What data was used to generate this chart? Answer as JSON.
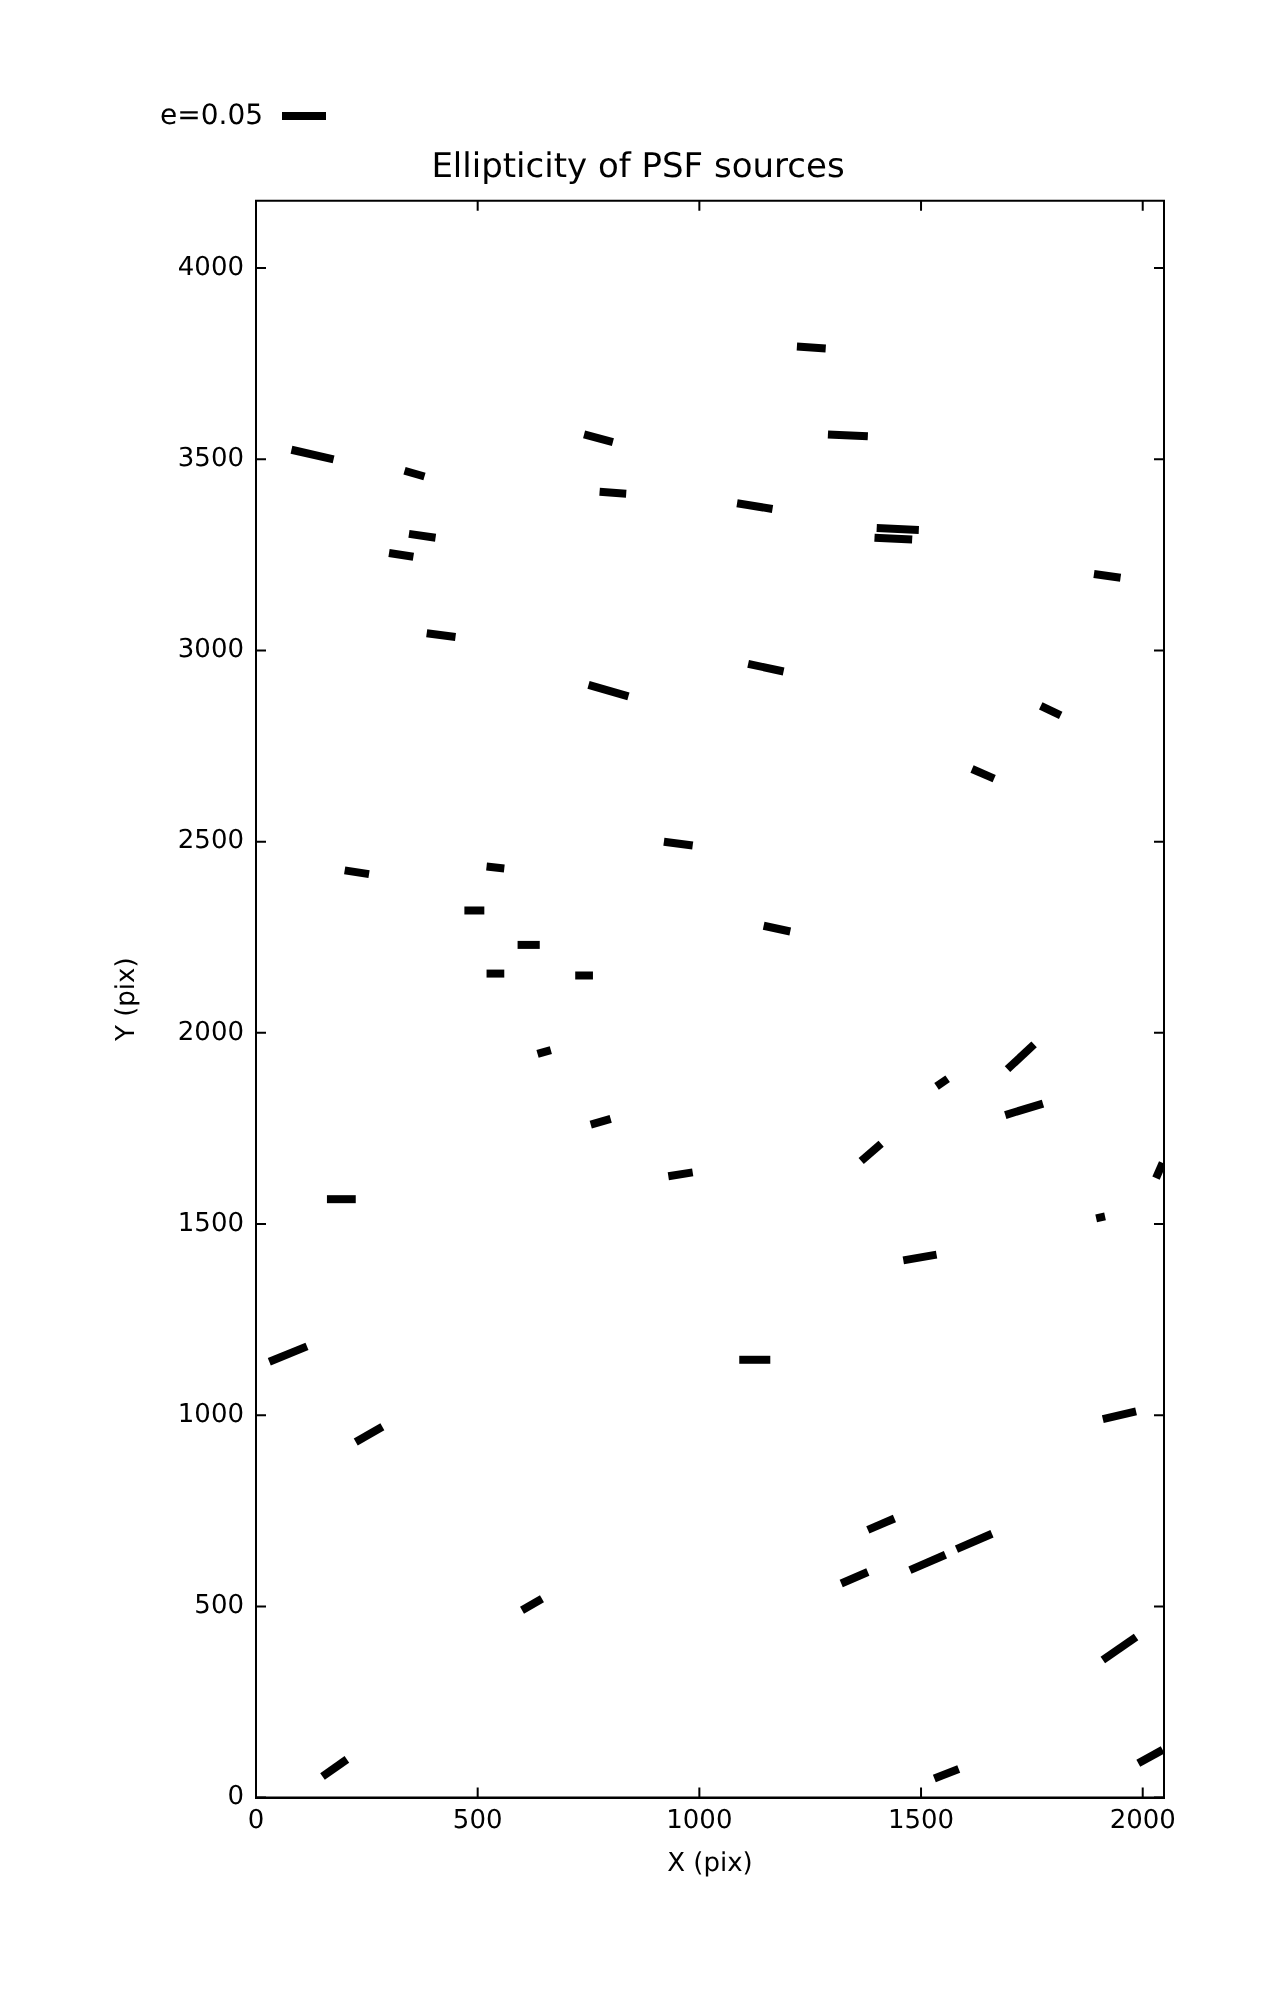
{
  "chart_data": {
    "type": "line",
    "title": "Ellipticity of PSF sources",
    "xlabel": "X (pix)",
    "ylabel": "Y (pix)",
    "annotations": [
      "e=0.05"
    ],
    "xlim": [
      0,
      2048
    ],
    "ylim": [
      0,
      4176
    ],
    "xticks": [
      0,
      500,
      1000,
      1500,
      2000
    ],
    "yticks": [
      0,
      500,
      1000,
      1500,
      2000,
      2500,
      3000,
      3500,
      4000
    ],
    "grid": false,
    "legend": false,
    "series": [
      {
        "color": "#000000",
        "x": [
          80,
          175
        ],
        "values": [
          3525,
          3500
        ]
      },
      {
        "color": "#000000",
        "x": [
          335,
          380
        ],
        "values": [
          3470,
          3455
        ]
      },
      {
        "color": "#000000",
        "x": [
          300,
          355
        ],
        "values": [
          3255,
          3245
        ]
      },
      {
        "color": "#000000",
        "x": [
          345,
          405
        ],
        "values": [
          3305,
          3295
        ]
      },
      {
        "color": "#000000",
        "x": [
          385,
          450
        ],
        "values": [
          3045,
          3035
        ]
      },
      {
        "color": "#000000",
        "x": [
          740,
          805
        ],
        "values": [
          3565,
          3545
        ]
      },
      {
        "color": "#000000",
        "x": [
          775,
          835
        ],
        "values": [
          3415,
          3410
        ]
      },
      {
        "color": "#000000",
        "x": [
          750,
          840
        ],
        "values": [
          2910,
          2880
        ]
      },
      {
        "color": "#000000",
        "x": [
          200,
          255
        ],
        "values": [
          2425,
          2415
        ]
      },
      {
        "color": "#000000",
        "x": [
          520,
          560
        ],
        "values": [
          2435,
          2430
        ]
      },
      {
        "color": "#000000",
        "x": [
          470,
          515
        ],
        "values": [
          2320,
          2320
        ]
      },
      {
        "color": "#000000",
        "x": [
          590,
          640
        ],
        "values": [
          2230,
          2230
        ]
      },
      {
        "color": "#000000",
        "x": [
          520,
          560
        ],
        "values": [
          2155,
          2155
        ]
      },
      {
        "color": "#000000",
        "x": [
          720,
          760
        ],
        "values": [
          2150,
          2150
        ]
      },
      {
        "color": "#000000",
        "x": [
          635,
          665
        ],
        "values": [
          1945,
          1955
        ]
      },
      {
        "color": "#000000",
        "x": [
          755,
          800
        ],
        "values": [
          1760,
          1775
        ]
      },
      {
        "color": "#000000",
        "x": [
          920,
          985
        ],
        "values": [
          2500,
          2490
        ]
      },
      {
        "color": "#000000",
        "x": [
          1085,
          1165
        ],
        "values": [
          3385,
          3370
        ]
      },
      {
        "color": "#000000",
        "x": [
          1220,
          1285
        ],
        "values": [
          3795,
          3790
        ]
      },
      {
        "color": "#000000",
        "x": [
          1290,
          1380
        ],
        "values": [
          3565,
          3560
        ]
      },
      {
        "color": "#000000",
        "x": [
          1400,
          1495
        ],
        "values": [
          3320,
          3315
        ]
      },
      {
        "color": "#000000",
        "x": [
          1395,
          1480
        ],
        "values": [
          3295,
          3290
        ]
      },
      {
        "color": "#000000",
        "x": [
          1110,
          1190
        ],
        "values": [
          2965,
          2945
        ]
      },
      {
        "color": "#000000",
        "x": [
          1890,
          1950
        ],
        "values": [
          3200,
          3190
        ]
      },
      {
        "color": "#000000",
        "x": [
          1770,
          1815
        ],
        "values": [
          2855,
          2830
        ]
      },
      {
        "color": "#000000",
        "x": [
          1615,
          1665
        ],
        "values": [
          2690,
          2665
        ]
      },
      {
        "color": "#000000",
        "x": [
          1145,
          1205
        ],
        "values": [
          2280,
          2265
        ]
      },
      {
        "color": "#000000",
        "x": [
          1535,
          1560
        ],
        "values": [
          1860,
          1880
        ]
      },
      {
        "color": "#000000",
        "x": [
          1695,
          1755
        ],
        "values": [
          1905,
          1970
        ]
      },
      {
        "color": "#000000",
        "x": [
          1690,
          1775
        ],
        "values": [
          1785,
          1815
        ]
      },
      {
        "color": "#000000",
        "x": [
          1365,
          1410
        ],
        "values": [
          1665,
          1710
        ]
      },
      {
        "color": "#000000",
        "x": [
          2030,
          2045
        ],
        "values": [
          1620,
          1660
        ]
      },
      {
        "color": "#000000",
        "x": [
          1895,
          1915
        ],
        "values": [
          1515,
          1520
        ]
      },
      {
        "color": "#000000",
        "x": [
          1460,
          1535
        ],
        "values": [
          1405,
          1420
        ]
      },
      {
        "color": "#000000",
        "x": [
          930,
          985
        ],
        "values": [
          1625,
          1635
        ]
      },
      {
        "color": "#000000",
        "x": [
          160,
          225
        ],
        "values": [
          1565,
          1565
        ]
      },
      {
        "color": "#000000",
        "x": [
          30,
          115
        ],
        "values": [
          1140,
          1180
        ]
      },
      {
        "color": "#000000",
        "x": [
          225,
          285
        ],
        "values": [
          930,
          970
        ]
      },
      {
        "color": "#000000",
        "x": [
          1090,
          1160
        ],
        "values": [
          1145,
          1145
        ]
      },
      {
        "color": "#000000",
        "x": [
          1910,
          1985
        ],
        "values": [
          990,
          1010
        ]
      },
      {
        "color": "#000000",
        "x": [
          1380,
          1440
        ],
        "values": [
          700,
          730
        ]
      },
      {
        "color": "#000000",
        "x": [
          1320,
          1380
        ],
        "values": [
          560,
          590
        ]
      },
      {
        "color": "#000000",
        "x": [
          1475,
          1555
        ],
        "values": [
          595,
          635
        ]
      },
      {
        "color": "#000000",
        "x": [
          1580,
          1660
        ],
        "values": [
          650,
          690
        ]
      },
      {
        "color": "#000000",
        "x": [
          1910,
          1985
        ],
        "values": [
          360,
          420
        ]
      },
      {
        "color": "#000000",
        "x": [
          1990,
          2045
        ],
        "values": [
          90,
          125
        ]
      },
      {
        "color": "#000000",
        "x": [
          1530,
          1585
        ],
        "values": [
          50,
          75
        ]
      },
      {
        "color": "#000000",
        "x": [
          600,
          645
        ],
        "values": [
          490,
          520
        ]
      },
      {
        "color": "#000000",
        "x": [
          150,
          205
        ],
        "values": [
          55,
          100
        ]
      }
    ]
  }
}
